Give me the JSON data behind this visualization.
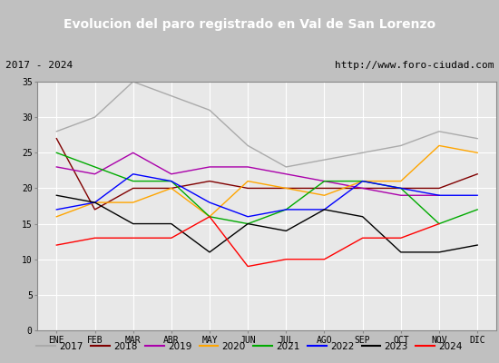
{
  "title": "Evolucion del paro registrado en Val de San Lorenzo",
  "subtitle_left": "2017 - 2024",
  "subtitle_right": "http://www.foro-ciudad.com",
  "months": [
    "ENE",
    "FEB",
    "MAR",
    "ABR",
    "MAY",
    "JUN",
    "JUL",
    "AGO",
    "SEP",
    "OCT",
    "NOV",
    "DIC"
  ],
  "ylim": [
    0,
    35
  ],
  "yticks": [
    0,
    5,
    10,
    15,
    20,
    25,
    30,
    35
  ],
  "series": {
    "2017": {
      "color": "#aaaaaa",
      "data": [
        28,
        30,
        35,
        33,
        31,
        26,
        23,
        24,
        25,
        26,
        28,
        27
      ]
    },
    "2018": {
      "color": "#800000",
      "data": [
        27,
        17,
        20,
        20,
        21,
        20,
        20,
        20,
        20,
        20,
        20,
        22
      ]
    },
    "2019": {
      "color": "#aa00aa",
      "data": [
        23,
        22,
        25,
        22,
        23,
        23,
        22,
        21,
        20,
        19,
        19,
        null
      ]
    },
    "2020": {
      "color": "#ffa500",
      "data": [
        16,
        18,
        18,
        20,
        16,
        21,
        20,
        19,
        21,
        21,
        26,
        25
      ]
    },
    "2021": {
      "color": "#00aa00",
      "data": [
        25,
        23,
        21,
        21,
        16,
        15,
        17,
        21,
        21,
        20,
        15,
        17
      ]
    },
    "2022": {
      "color": "#0000ff",
      "data": [
        17,
        18,
        22,
        21,
        18,
        16,
        17,
        17,
        21,
        20,
        19,
        19
      ]
    },
    "2023": {
      "color": "#000000",
      "data": [
        19,
        18,
        15,
        15,
        11,
        15,
        14,
        17,
        16,
        11,
        11,
        12
      ]
    },
    "2024": {
      "color": "#ff0000",
      "data": [
        12,
        13,
        13,
        13,
        16,
        9,
        10,
        10,
        13,
        13,
        15,
        null
      ]
    }
  },
  "title_bg_color": "#4a90d9",
  "title_fg_color": "#ffffff",
  "plot_bg_color": "#e8e8e8",
  "subtitle_bg_color": "#d0d0d0",
  "legend_bg_color": "#f0f0f0",
  "grid_color": "#ffffff"
}
